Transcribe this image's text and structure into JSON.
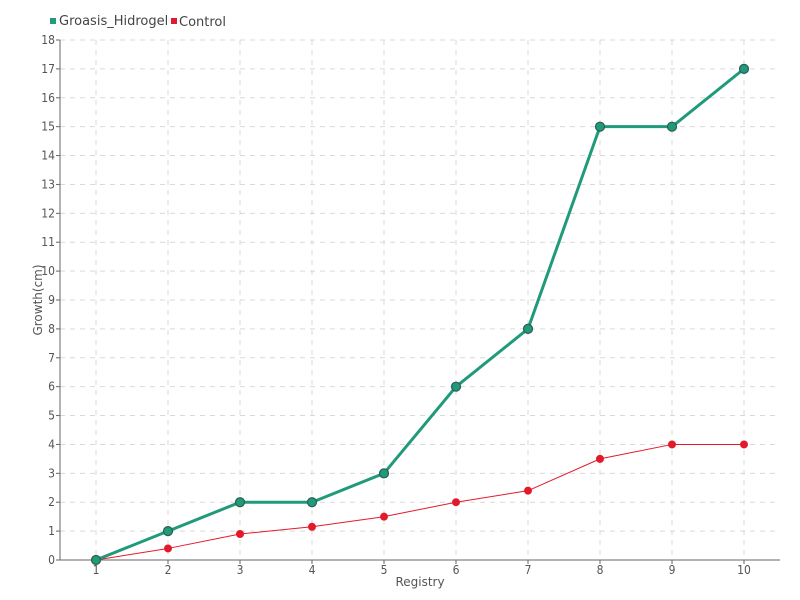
{
  "chart_data": {
    "type": "line",
    "title": "",
    "xlabel": "Registry",
    "ylabel": "Growth(cm)",
    "categories": [
      "1",
      "2",
      "3",
      "4",
      "5",
      "6",
      "7",
      "8",
      "9",
      "10"
    ],
    "x": [
      1,
      2,
      3,
      4,
      5,
      6,
      7,
      8,
      9,
      10
    ],
    "ylim": [
      0,
      18
    ],
    "yticks": [
      0,
      1,
      2,
      3,
      4,
      5,
      6,
      7,
      8,
      9,
      10,
      11,
      12,
      13,
      14,
      15,
      16,
      17,
      18
    ],
    "grid": true,
    "legend_position": "top-left",
    "series": [
      {
        "name": "Groasis_Hidrogel",
        "color": "#1f9a7a",
        "values": [
          0,
          1,
          2,
          2,
          3,
          6,
          8,
          15,
          15,
          17
        ]
      },
      {
        "name": "Control",
        "color": "#e31a2c",
        "values": [
          0,
          0.4,
          0.9,
          1.15,
          1.5,
          2,
          2.4,
          3.5,
          4,
          4
        ]
      }
    ]
  }
}
